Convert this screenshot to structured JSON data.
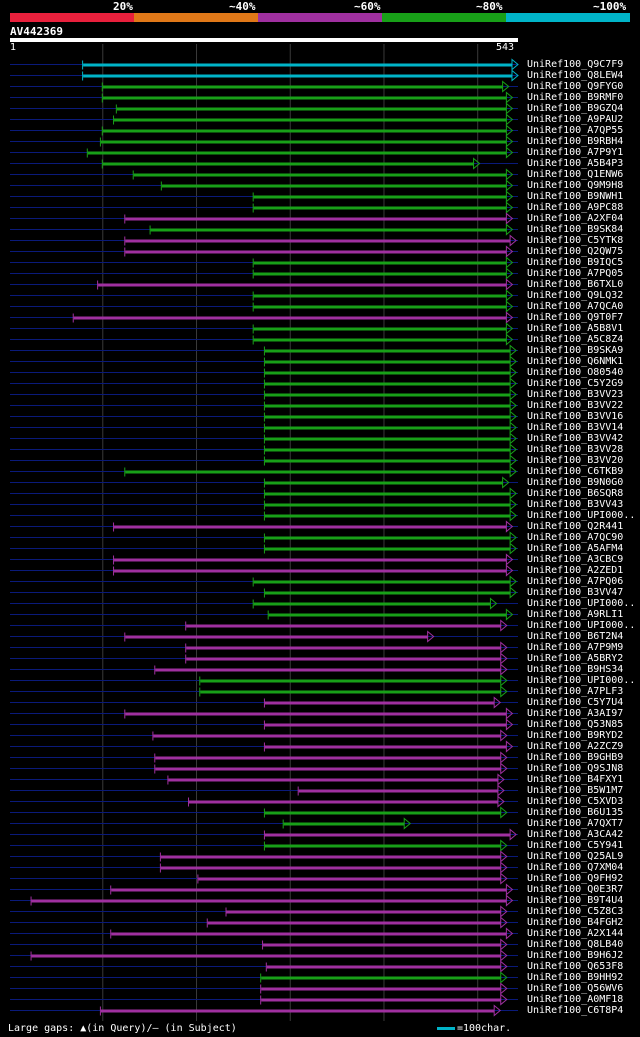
{
  "colors": {
    "red": "#e8203c",
    "orange": "#e07818",
    "purple": "#a030a0",
    "green": "#18a018",
    "cyan": "#00b4c8",
    "dash": "#0a1a7a",
    "axis": "#3a3a3a"
  },
  "legend": {
    "labels": [
      "20%",
      "~40%",
      "~60%",
      "~80%",
      "~100%"
    ],
    "colors": [
      "#e8203c",
      "#e07818",
      "#a030a0",
      "#18a018",
      "#00b4c8"
    ]
  },
  "query": {
    "name": "AV442369",
    "start_label": "1",
    "end_label": "543"
  },
  "footer": {
    "gaps_text": "Large gaps: ▲(in Query)/– (in Subject)",
    "scale_text": "=100char."
  },
  "chart_data": {
    "type": "alignment",
    "title": "AV442369",
    "query_length": 543,
    "tick_interval": 100,
    "identity_bins": [
      "20%",
      "~40%",
      "~60%",
      "~80%",
      "~100%"
    ],
    "hits": [
      {
        "id": "UniRef100_Q9C7F9",
        "start": 79,
        "end": 543,
        "identity": "~100%",
        "arrow": true
      },
      {
        "id": "UniRef100_Q8LEW4",
        "start": 79,
        "end": 543,
        "identity": "~100%",
        "arrow": true
      },
      {
        "id": "UniRef100_Q9FYG0",
        "start": 100,
        "end": 533,
        "identity": "~80%",
        "arrow": true
      },
      {
        "id": "UniRef100_B9RMF0",
        "start": 100,
        "end": 537,
        "identity": "~80%",
        "arrow": true
      },
      {
        "id": "UniRef100_B9GZQ4",
        "start": 115,
        "end": 537,
        "identity": "~80%",
        "arrow": true
      },
      {
        "id": "UniRef100_A9PAU2",
        "start": 112,
        "end": 537,
        "identity": "~80%",
        "arrow": true
      },
      {
        "id": "UniRef100_A7QP55",
        "start": 100,
        "end": 537,
        "identity": "~80%",
        "arrow": true
      },
      {
        "id": "UniRef100_B9RBH4",
        "start": 98,
        "end": 537,
        "identity": "~80%",
        "arrow": true
      },
      {
        "id": "UniRef100_A7P9Y1",
        "start": 84,
        "end": 537,
        "identity": "~80%",
        "arrow": true
      },
      {
        "id": "UniRef100_A5B4P3",
        "start": 100,
        "end": 502,
        "identity": "~80%",
        "arrow": true
      },
      {
        "id": "UniRef100_Q1ENW6",
        "start": 133,
        "end": 537,
        "identity": "~80%",
        "arrow": true
      },
      {
        "id": "UniRef100_Q9M9H8",
        "start": 163,
        "end": 537,
        "identity": "~80%",
        "arrow": true
      },
      {
        "id": "UniRef100_B9NWH1",
        "start": 261,
        "end": 537,
        "identity": "~80%",
        "arrow": true
      },
      {
        "id": "UniRef100_A9PC88",
        "start": 261,
        "end": 537,
        "identity": "~80%",
        "arrow": true
      },
      {
        "id": "UniRef100_A2XF04",
        "start": 124,
        "end": 537,
        "identity": "~60%",
        "arrow": true
      },
      {
        "id": "UniRef100_B9SK84",
        "start": 151,
        "end": 537,
        "identity": "~80%",
        "arrow": true
      },
      {
        "id": "UniRef100_C5YTK8",
        "start": 124,
        "end": 541,
        "identity": "~60%",
        "arrow": true
      },
      {
        "id": "UniRef100_Q2QW75",
        "start": 124,
        "end": 537,
        "identity": "~60%",
        "arrow": true
      },
      {
        "id": "UniRef100_B9IQC5",
        "start": 261,
        "end": 537,
        "identity": "~80%",
        "arrow": true
      },
      {
        "id": "UniRef100_A7PQ05",
        "start": 261,
        "end": 537,
        "identity": "~80%",
        "arrow": true
      },
      {
        "id": "UniRef100_B6TXL0",
        "start": 95,
        "end": 537,
        "identity": "~60%",
        "arrow": true
      },
      {
        "id": "UniRef100_Q9LQ32",
        "start": 261,
        "end": 537,
        "identity": "~80%",
        "arrow": true
      },
      {
        "id": "UniRef100_A7QCA0",
        "start": 261,
        "end": 537,
        "identity": "~80%",
        "arrow": true
      },
      {
        "id": "UniRef100_Q9T0F7",
        "start": 69,
        "end": 537,
        "identity": "~60%",
        "arrow": true
      },
      {
        "id": "UniRef100_A5B8V1",
        "start": 261,
        "end": 537,
        "identity": "~80%",
        "arrow": true
      },
      {
        "id": "UniRef100_A5C8Z4",
        "start": 261,
        "end": 537,
        "identity": "~80%",
        "arrow": true
      },
      {
        "id": "UniRef100_B9SKA9",
        "start": 273,
        "end": 541,
        "identity": "~80%",
        "arrow": true
      },
      {
        "id": "UniRef100_Q6NMK1",
        "start": 273,
        "end": 541,
        "identity": "~80%",
        "arrow": true
      },
      {
        "id": "UniRef100_O80540",
        "start": 273,
        "end": 541,
        "identity": "~80%",
        "arrow": true
      },
      {
        "id": "UniRef100_C5Y2G9",
        "start": 273,
        "end": 541,
        "identity": "~80%",
        "arrow": true
      },
      {
        "id": "UniRef100_B3VV23",
        "start": 273,
        "end": 541,
        "identity": "~80%",
        "arrow": true
      },
      {
        "id": "UniRef100_B3VV22",
        "start": 273,
        "end": 541,
        "identity": "~80%",
        "arrow": true
      },
      {
        "id": "UniRef100_B3VV16",
        "start": 273,
        "end": 541,
        "identity": "~80%",
        "arrow": true
      },
      {
        "id": "UniRef100_B3VV14",
        "start": 273,
        "end": 541,
        "identity": "~80%",
        "arrow": true
      },
      {
        "id": "UniRef100_B3VV42",
        "start": 273,
        "end": 541,
        "identity": "~80%",
        "arrow": true
      },
      {
        "id": "UniRef100_B3VV28",
        "start": 273,
        "end": 541,
        "identity": "~80%",
        "arrow": true
      },
      {
        "id": "UniRef100_B3VV20",
        "start": 273,
        "end": 541,
        "identity": "~80%",
        "arrow": true
      },
      {
        "id": "UniRef100_C6TKB9",
        "start": 124,
        "end": 541,
        "identity": "~80%",
        "arrow": true
      },
      {
        "id": "UniRef100_B9N0G0",
        "start": 273,
        "end": 533,
        "identity": "~80%",
        "arrow": true
      },
      {
        "id": "UniRef100_B6SQR8",
        "start": 273,
        "end": 541,
        "identity": "~80%",
        "arrow": true
      },
      {
        "id": "UniRef100_B3VV43",
        "start": 273,
        "end": 541,
        "identity": "~80%",
        "arrow": true
      },
      {
        "id": "UniRef100_UPI000..",
        "start": 273,
        "end": 541,
        "identity": "~80%",
        "arrow": true
      },
      {
        "id": "UniRef100_Q2R441",
        "start": 112,
        "end": 537,
        "identity": "~60%",
        "arrow": true
      },
      {
        "id": "UniRef100_A7QC90",
        "start": 273,
        "end": 541,
        "identity": "~80%",
        "arrow": true
      },
      {
        "id": "UniRef100_A5AFM4",
        "start": 273,
        "end": 541,
        "identity": "~80%",
        "arrow": true
      },
      {
        "id": "UniRef100_A3CBC9",
        "start": 112,
        "end": 537,
        "identity": "~60%",
        "arrow": true
      },
      {
        "id": "UniRef100_A2ZED1",
        "start": 112,
        "end": 537,
        "identity": "~60%",
        "arrow": true
      },
      {
        "id": "UniRef100_A7PQ06",
        "start": 261,
        "end": 541,
        "identity": "~80%",
        "arrow": true
      },
      {
        "id": "UniRef100_B3VV47",
        "start": 273,
        "end": 541,
        "identity": "~80%",
        "arrow": true
      },
      {
        "id": "UniRef100_UPI000..",
        "start": 261,
        "end": 520,
        "identity": "~80%",
        "arrow": true
      },
      {
        "id": "UniRef100_A9RLI1",
        "start": 277,
        "end": 537,
        "identity": "~80%",
        "arrow": true
      },
      {
        "id": "UniRef100_UPI000..",
        "start": 189,
        "end": 531,
        "identity": "~60%",
        "arrow": true
      },
      {
        "id": "UniRef100_B6T2N4",
        "start": 124,
        "end": 453,
        "identity": "~60%",
        "arrow": true
      },
      {
        "id": "UniRef100_A7P9M9",
        "start": 189,
        "end": 531,
        "identity": "~60%",
        "arrow": true
      },
      {
        "id": "UniRef100_A5BRY2",
        "start": 189,
        "end": 531,
        "identity": "~60%",
        "arrow": true
      },
      {
        "id": "UniRef100_B9HS34",
        "start": 156,
        "end": 531,
        "identity": "~60%",
        "arrow": true
      },
      {
        "id": "UniRef100_UPI000..",
        "start": 204,
        "end": 531,
        "identity": "~80%",
        "arrow": true
      },
      {
        "id": "UniRef100_A7PLF3",
        "start": 204,
        "end": 531,
        "identity": "~80%",
        "arrow": true
      },
      {
        "id": "UniRef100_C5Y7U4",
        "start": 273,
        "end": 524,
        "identity": "~60%",
        "arrow": true
      },
      {
        "id": "UniRef100_A3AI97",
        "start": 124,
        "end": 537,
        "identity": "~60%",
        "arrow": true
      },
      {
        "id": "UniRef100_Q53N85",
        "start": 273,
        "end": 537,
        "identity": "~60%",
        "arrow": true
      },
      {
        "id": "UniRef100_B9RYD2",
        "start": 154,
        "end": 531,
        "identity": "~60%",
        "arrow": true
      },
      {
        "id": "UniRef100_A2ZCZ9",
        "start": 273,
        "end": 537,
        "identity": "~60%",
        "arrow": true
      },
      {
        "id": "UniRef100_B9GHB9",
        "start": 156,
        "end": 531,
        "identity": "~60%",
        "arrow": true
      },
      {
        "id": "UniRef100_Q9SJN8",
        "start": 156,
        "end": 531,
        "identity": "~60%",
        "arrow": true
      },
      {
        "id": "UniRef100_B4FXY1",
        "start": 170,
        "end": 528,
        "identity": "~60%",
        "arrow": true
      },
      {
        "id": "UniRef100_B5W1M7",
        "start": 309,
        "end": 528,
        "identity": "~60%",
        "arrow": true
      },
      {
        "id": "UniRef100_C5XVD3",
        "start": 192,
        "end": 528,
        "identity": "~60%",
        "arrow": true
      },
      {
        "id": "UniRef100_B6U135",
        "start": 273,
        "end": 531,
        "identity": "~80%",
        "arrow": true
      },
      {
        "id": "UniRef100_A7QXT7",
        "start": 293,
        "end": 428,
        "identity": "~80%",
        "arrow": true
      },
      {
        "id": "UniRef100_A3CA42",
        "start": 273,
        "end": 541,
        "identity": "~60%",
        "arrow": true
      },
      {
        "id": "UniRef100_C5Y941",
        "start": 273,
        "end": 531,
        "identity": "~80%",
        "arrow": true
      },
      {
        "id": "UniRef100_Q25AL9",
        "start": 162,
        "end": 531,
        "identity": "~60%",
        "arrow": true
      },
      {
        "id": "UniRef100_Q7XM04",
        "start": 162,
        "end": 531,
        "identity": "~60%",
        "arrow": true
      },
      {
        "id": "UniRef100_Q9FH92",
        "start": 202,
        "end": 531,
        "identity": "~60%",
        "arrow": true
      },
      {
        "id": "UniRef100_Q0E3R7",
        "start": 109,
        "end": 537,
        "identity": "~60%",
        "arrow": true
      },
      {
        "id": "UniRef100_B9T4U4",
        "start": 24,
        "end": 537,
        "identity": "~60%",
        "arrow": true
      },
      {
        "id": "UniRef100_C5Z8C3",
        "start": 232,
        "end": 531,
        "identity": "~60%",
        "arrow": true
      },
      {
        "id": "UniRef100_B4FGH2",
        "start": 212,
        "end": 531,
        "identity": "~60%",
        "arrow": true
      },
      {
        "id": "UniRef100_A2X144",
        "start": 109,
        "end": 537,
        "identity": "~60%",
        "arrow": true
      },
      {
        "id": "UniRef100_Q8LB40",
        "start": 271,
        "end": 531,
        "identity": "~60%",
        "arrow": true
      },
      {
        "id": "UniRef100_B9H6J2",
        "start": 24,
        "end": 531,
        "identity": "~60%",
        "arrow": true
      },
      {
        "id": "UniRef100_Q653F8",
        "start": 275,
        "end": 531,
        "identity": "~60%",
        "arrow": true
      },
      {
        "id": "UniRef100_B9HH92",
        "start": 269,
        "end": 531,
        "identity": "~80%",
        "arrow": true
      },
      {
        "id": "UniRef100_Q56WV6",
        "start": 269,
        "end": 531,
        "identity": "~60%",
        "arrow": true
      },
      {
        "id": "UniRef100_A0MF18",
        "start": 269,
        "end": 531,
        "identity": "~60%",
        "arrow": true
      },
      {
        "id": "UniRef100_C6T8P4",
        "start": 98,
        "end": 524,
        "identity": "~60%",
        "arrow": true
      }
    ]
  }
}
